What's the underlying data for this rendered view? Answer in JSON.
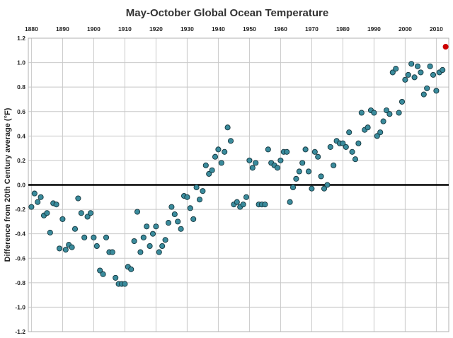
{
  "chart_data": {
    "type": "scatter",
    "title": "May-October Global Ocean Temperature",
    "ylabel": "Difference from 20th Century average (°F)",
    "xlabel": "",
    "xlim": [
      1879,
      2014
    ],
    "ylim": [
      -1.2,
      1.2
    ],
    "x_ticks": [
      "1880",
      "1890",
      "1900",
      "1910",
      "1920",
      "1930",
      "1940",
      "1950",
      "1960",
      "1970",
      "1980",
      "1990",
      "2000",
      "2010"
    ],
    "y_ticks": [
      "1.2",
      "1.0",
      "0.8",
      "0.6",
      "0.4",
      "0.2",
      "0.0",
      "-0.2",
      "-0.4",
      "-0.6",
      "-0.8",
      "-1.0",
      "-1.2"
    ],
    "grid": true,
    "zero_line": true,
    "colors": {
      "points": "#3a8b9c",
      "point_edge": "#14353d",
      "highlight": "#cc0000",
      "zero_line": "#000000"
    },
    "points": [
      {
        "x": 1880,
        "y": -0.18
      },
      {
        "x": 1881,
        "y": -0.07
      },
      {
        "x": 1882,
        "y": -0.14
      },
      {
        "x": 1883,
        "y": -0.1
      },
      {
        "x": 1884,
        "y": -0.25
      },
      {
        "x": 1885,
        "y": -0.23
      },
      {
        "x": 1886,
        "y": -0.39
      },
      {
        "x": 1887,
        "y": -0.15
      },
      {
        "x": 1888,
        "y": -0.16
      },
      {
        "x": 1889,
        "y": -0.52
      },
      {
        "x": 1890,
        "y": -0.28
      },
      {
        "x": 1891,
        "y": -0.53
      },
      {
        "x": 1892,
        "y": -0.49
      },
      {
        "x": 1893,
        "y": -0.51
      },
      {
        "x": 1894,
        "y": -0.36
      },
      {
        "x": 1895,
        "y": -0.11
      },
      {
        "x": 1896,
        "y": -0.23
      },
      {
        "x": 1897,
        "y": -0.43
      },
      {
        "x": 1898,
        "y": -0.26
      },
      {
        "x": 1899,
        "y": -0.23
      },
      {
        "x": 1900,
        "y": -0.43
      },
      {
        "x": 1901,
        "y": -0.5
      },
      {
        "x": 1902,
        "y": -0.7
      },
      {
        "x": 1903,
        "y": -0.73
      },
      {
        "x": 1904,
        "y": -0.43
      },
      {
        "x": 1905,
        "y": -0.55
      },
      {
        "x": 1906,
        "y": -0.55
      },
      {
        "x": 1907,
        "y": -0.76
      },
      {
        "x": 1908,
        "y": -0.81
      },
      {
        "x": 1909,
        "y": -0.81
      },
      {
        "x": 1910,
        "y": -0.81
      },
      {
        "x": 1911,
        "y": -0.67
      },
      {
        "x": 1912,
        "y": -0.69
      },
      {
        "x": 1913,
        "y": -0.46
      },
      {
        "x": 1914,
        "y": -0.22
      },
      {
        "x": 1915,
        "y": -0.55
      },
      {
        "x": 1916,
        "y": -0.43
      },
      {
        "x": 1917,
        "y": -0.34
      },
      {
        "x": 1918,
        "y": -0.5
      },
      {
        "x": 1919,
        "y": -0.4
      },
      {
        "x": 1920,
        "y": -0.34
      },
      {
        "x": 1921,
        "y": -0.55
      },
      {
        "x": 1922,
        "y": -0.5
      },
      {
        "x": 1923,
        "y": -0.45
      },
      {
        "x": 1924,
        "y": -0.31
      },
      {
        "x": 1925,
        "y": -0.18
      },
      {
        "x": 1926,
        "y": -0.24
      },
      {
        "x": 1927,
        "y": -0.3
      },
      {
        "x": 1928,
        "y": -0.36
      },
      {
        "x": 1929,
        "y": -0.09
      },
      {
        "x": 1930,
        "y": -0.1
      },
      {
        "x": 1931,
        "y": -0.19
      },
      {
        "x": 1932,
        "y": -0.28
      },
      {
        "x": 1933,
        "y": -0.02
      },
      {
        "x": 1934,
        "y": -0.12
      },
      {
        "x": 1935,
        "y": -0.05
      },
      {
        "x": 1936,
        "y": 0.16
      },
      {
        "x": 1937,
        "y": 0.09
      },
      {
        "x": 1938,
        "y": 0.12
      },
      {
        "x": 1939,
        "y": 0.23
      },
      {
        "x": 1940,
        "y": 0.29
      },
      {
        "x": 1941,
        "y": 0.18
      },
      {
        "x": 1942,
        "y": 0.27
      },
      {
        "x": 1943,
        "y": 0.47
      },
      {
        "x": 1944,
        "y": 0.36
      },
      {
        "x": 1945,
        "y": -0.16
      },
      {
        "x": 1946,
        "y": -0.14
      },
      {
        "x": 1947,
        "y": -0.18
      },
      {
        "x": 1948,
        "y": -0.16
      },
      {
        "x": 1949,
        "y": -0.1
      },
      {
        "x": 1950,
        "y": 0.2
      },
      {
        "x": 1951,
        "y": 0.14
      },
      {
        "x": 1952,
        "y": 0.18
      },
      {
        "x": 1953,
        "y": -0.16
      },
      {
        "x": 1954,
        "y": -0.16
      },
      {
        "x": 1955,
        "y": -0.16
      },
      {
        "x": 1956,
        "y": 0.29
      },
      {
        "x": 1957,
        "y": 0.18
      },
      {
        "x": 1958,
        "y": 0.16
      },
      {
        "x": 1959,
        "y": 0.14
      },
      {
        "x": 1960,
        "y": 0.2
      },
      {
        "x": 1961,
        "y": 0.27
      },
      {
        "x": 1962,
        "y": 0.27
      },
      {
        "x": 1963,
        "y": -0.14
      },
      {
        "x": 1964,
        "y": -0.02
      },
      {
        "x": 1965,
        "y": 0.05
      },
      {
        "x": 1966,
        "y": 0.11
      },
      {
        "x": 1967,
        "y": 0.18
      },
      {
        "x": 1968,
        "y": 0.29
      },
      {
        "x": 1969,
        "y": 0.11
      },
      {
        "x": 1970,
        "y": -0.03
      },
      {
        "x": 1971,
        "y": 0.27
      },
      {
        "x": 1972,
        "y": 0.23
      },
      {
        "x": 1973,
        "y": 0.07
      },
      {
        "x": 1974,
        "y": -0.03
      },
      {
        "x": 1975,
        "y": 0.0
      },
      {
        "x": 1976,
        "y": 0.31
      },
      {
        "x": 1977,
        "y": 0.16
      },
      {
        "x": 1978,
        "y": 0.36
      },
      {
        "x": 1979,
        "y": 0.34
      },
      {
        "x": 1980,
        "y": 0.34
      },
      {
        "x": 1981,
        "y": 0.31
      },
      {
        "x": 1982,
        "y": 0.43
      },
      {
        "x": 1983,
        "y": 0.27
      },
      {
        "x": 1984,
        "y": 0.21
      },
      {
        "x": 1985,
        "y": 0.34
      },
      {
        "x": 1986,
        "y": 0.59
      },
      {
        "x": 1987,
        "y": 0.45
      },
      {
        "x": 1988,
        "y": 0.47
      },
      {
        "x": 1989,
        "y": 0.61
      },
      {
        "x": 1990,
        "y": 0.59
      },
      {
        "x": 1991,
        "y": 0.4
      },
      {
        "x": 1992,
        "y": 0.43
      },
      {
        "x": 1993,
        "y": 0.52
      },
      {
        "x": 1994,
        "y": 0.61
      },
      {
        "x": 1995,
        "y": 0.58
      },
      {
        "x": 1996,
        "y": 0.92
      },
      {
        "x": 1997,
        "y": 0.95
      },
      {
        "x": 1998,
        "y": 0.59
      },
      {
        "x": 1999,
        "y": 0.68
      },
      {
        "x": 2000,
        "y": 0.86
      },
      {
        "x": 2001,
        "y": 0.9
      },
      {
        "x": 2002,
        "y": 0.99
      },
      {
        "x": 2003,
        "y": 0.88
      },
      {
        "x": 2004,
        "y": 0.97
      },
      {
        "x": 2005,
        "y": 0.92
      },
      {
        "x": 2006,
        "y": 0.74
      },
      {
        "x": 2007,
        "y": 0.79
      },
      {
        "x": 2008,
        "y": 0.97
      },
      {
        "x": 2009,
        "y": 0.9
      },
      {
        "x": 2010,
        "y": 0.77
      },
      {
        "x": 2011,
        "y": 0.92
      },
      {
        "x": 2012,
        "y": 0.94
      },
      {
        "x": 2013,
        "y": 1.13,
        "highlight": true
      }
    ]
  }
}
